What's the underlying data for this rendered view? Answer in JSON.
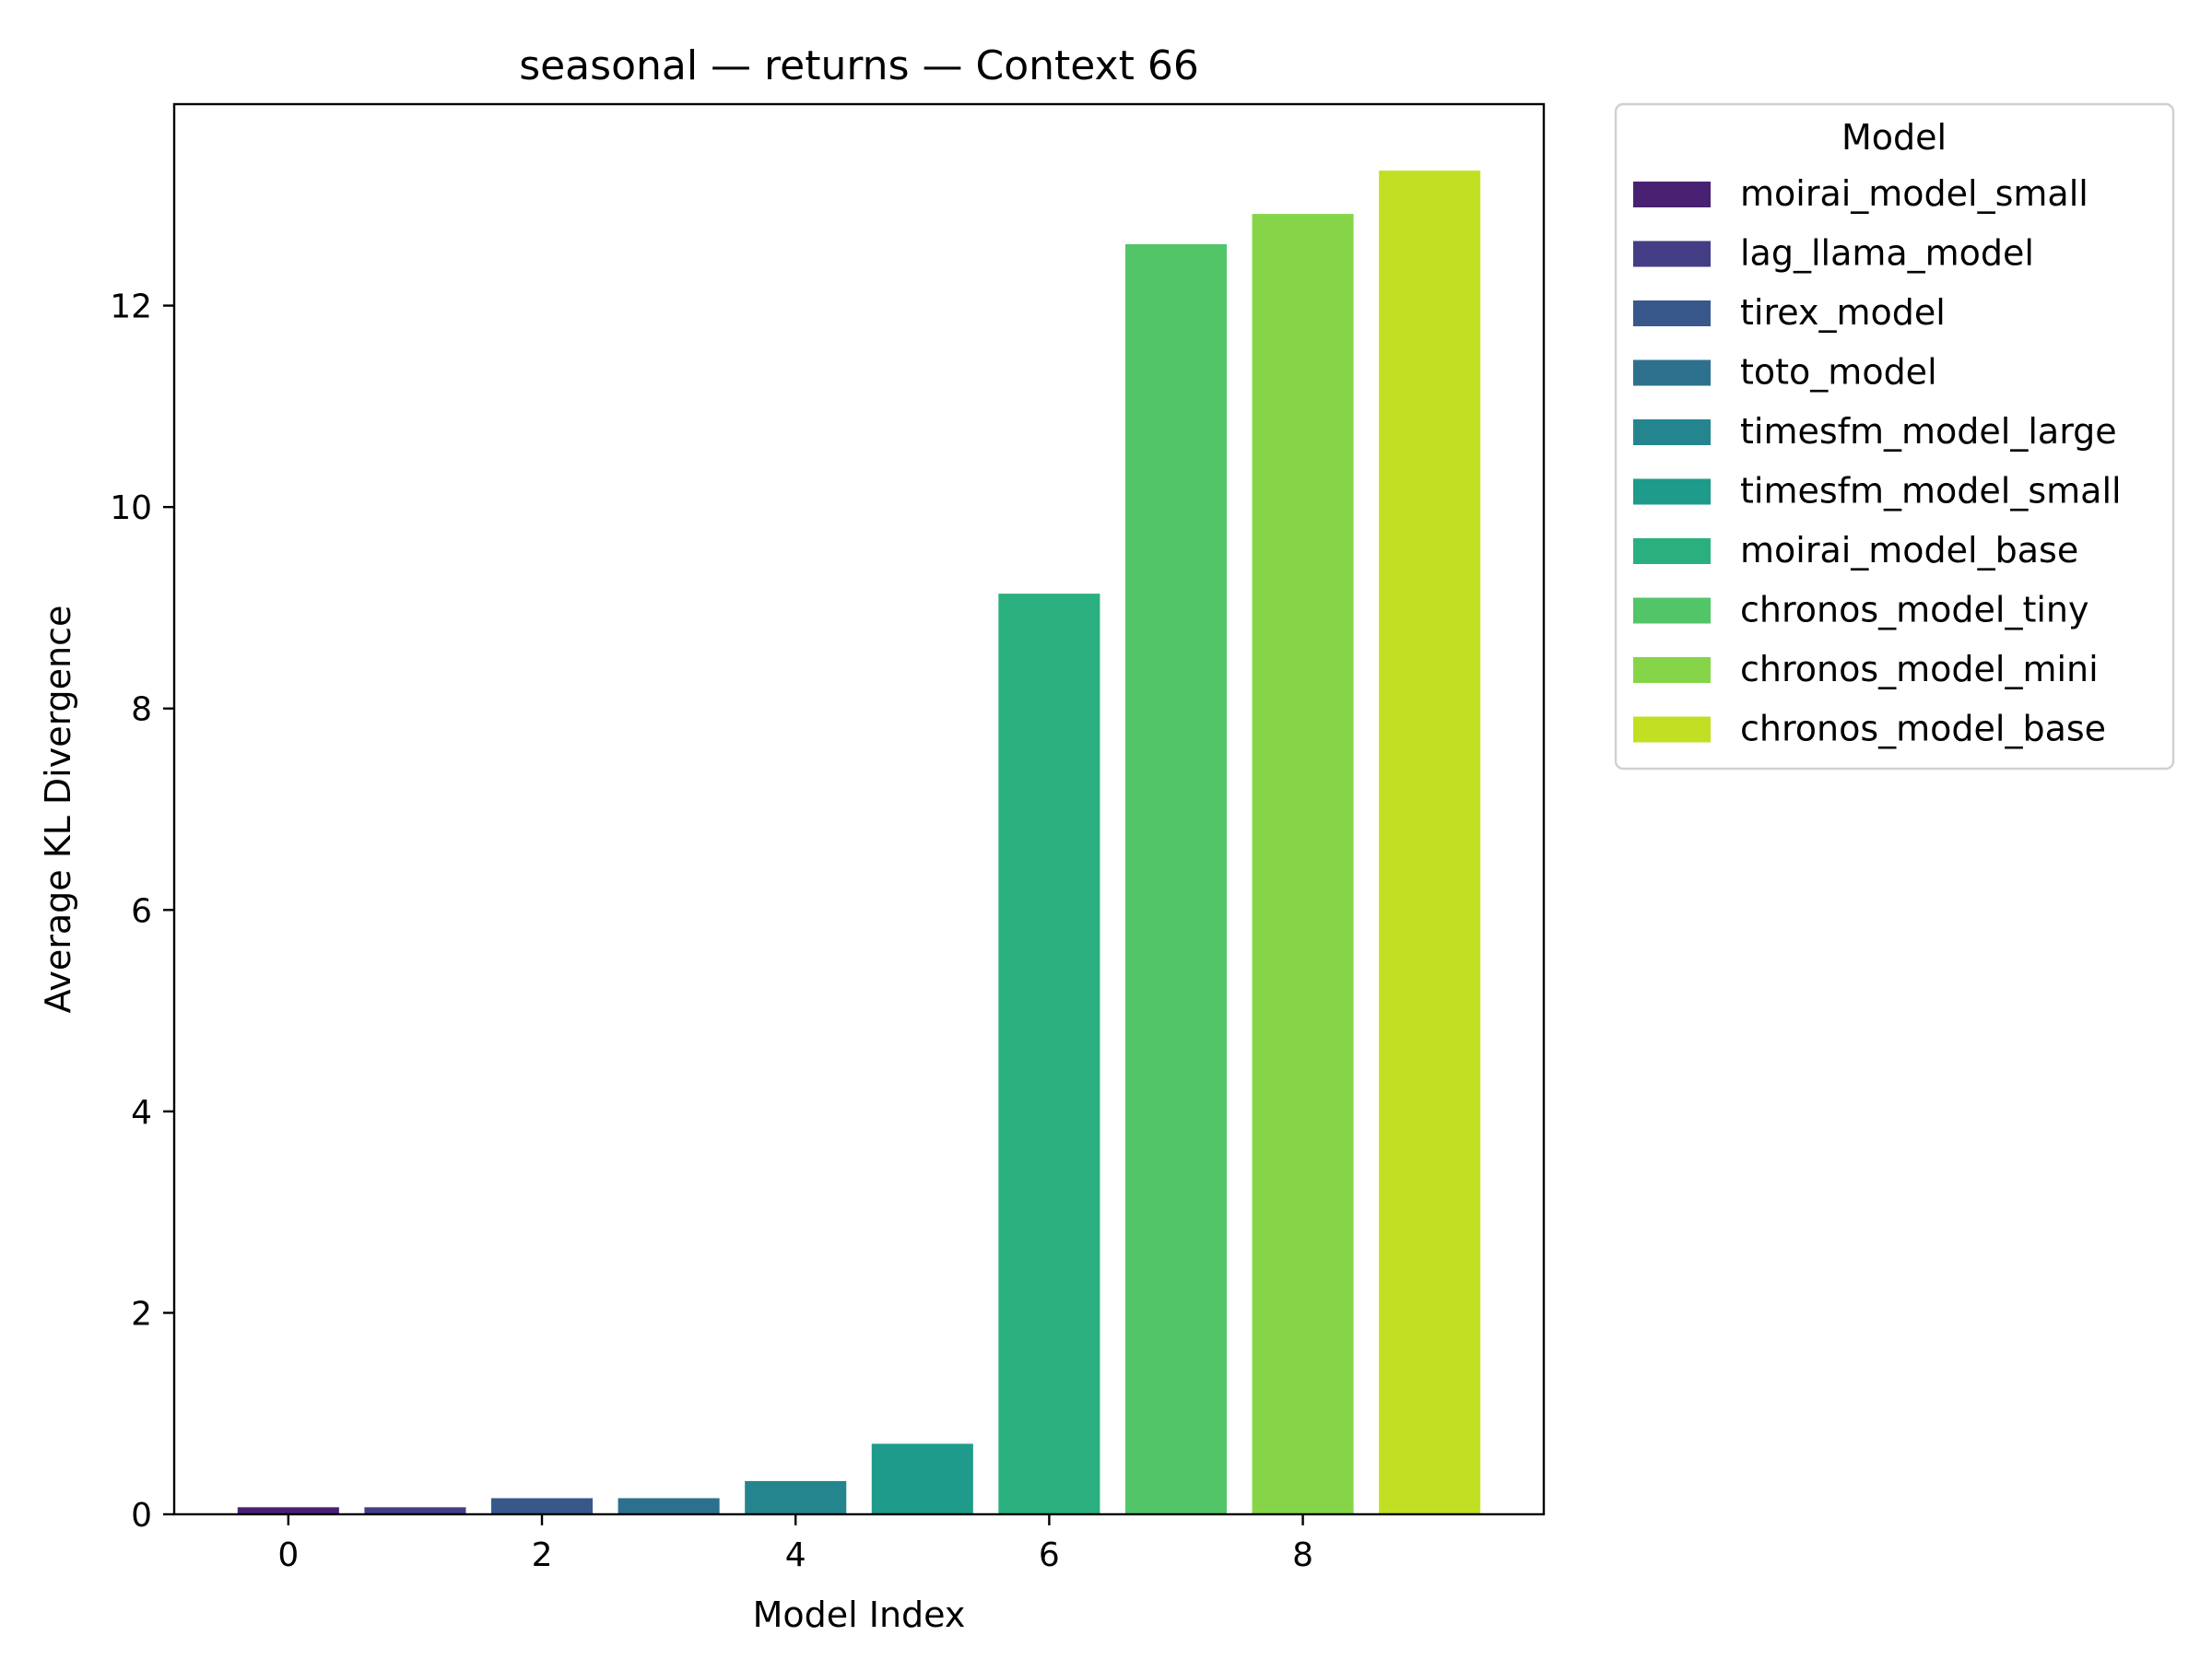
{
  "chart_data": {
    "type": "bar",
    "title": "seasonal — returns — Context 66",
    "xlabel": "Model Index",
    "ylabel": "Average KL Divergence",
    "categories": [
      0,
      1,
      2,
      3,
      4,
      5,
      6,
      7,
      8,
      9
    ],
    "values": [
      0.07,
      0.07,
      0.16,
      0.16,
      0.33,
      0.7,
      9.14,
      12.61,
      12.91,
      13.34
    ],
    "xlim": [
      -0.9,
      9.9
    ],
    "ylim": [
      0,
      14.0
    ],
    "xticks": [
      0,
      2,
      4,
      6,
      8
    ],
    "yticks": [
      0,
      2,
      4,
      6,
      8,
      10,
      12
    ],
    "grid": false,
    "legend": {
      "title": "Model",
      "placement": "outside-right-top",
      "entries": [
        {
          "label": "moirai_model_small",
          "color": "#482173"
        },
        {
          "label": "lag_llama_model",
          "color": "#433e85"
        },
        {
          "label": "tirex_model",
          "color": "#38588c"
        },
        {
          "label": "toto_model",
          "color": "#2d708e"
        },
        {
          "label": "timesfm_model_large",
          "color": "#25858e"
        },
        {
          "label": "timesfm_model_small",
          "color": "#1e9b8a"
        },
        {
          "label": "moirai_model_base",
          "color": "#2ab07f"
        },
        {
          "label": "chronos_model_tiny",
          "color": "#52c569"
        },
        {
          "label": "chronos_model_mini",
          "color": "#86d549"
        },
        {
          "label": "chronos_model_base",
          "color": "#c2df23"
        }
      ]
    }
  }
}
